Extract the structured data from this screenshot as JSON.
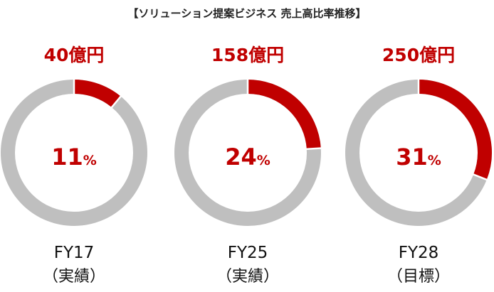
{
  "chart_data": {
    "type": "pie",
    "title": "【ソリューション提案ビジネス 売上高比率推移】",
    "colors": {
      "highlight": "#c00000",
      "remainder": "#bfbfbf"
    },
    "charts": [
      {
        "value_label": "40億円",
        "percent": 11,
        "percent_label": "11",
        "unit": "%",
        "year": "FY17",
        "note": "（実績）"
      },
      {
        "value_label": "158億円",
        "percent": 24,
        "percent_label": "24",
        "unit": "%",
        "year": "FY25",
        "note": "（実績）"
      },
      {
        "value_label": "250億円",
        "percent": 31,
        "percent_label": "31",
        "unit": "%",
        "year": "FY28",
        "note": "（目標）"
      }
    ]
  }
}
